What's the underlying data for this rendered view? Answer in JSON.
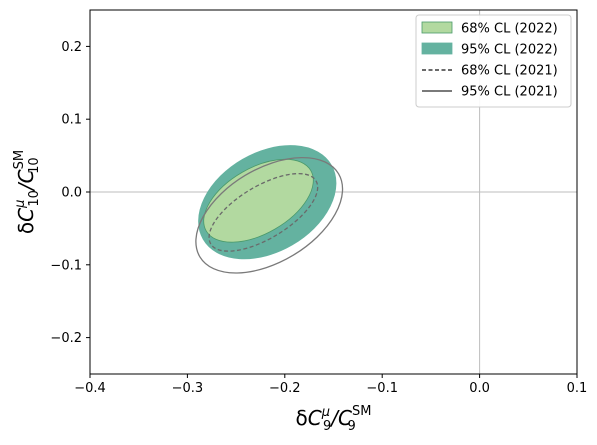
{
  "chart_data": {
    "type": "contour",
    "x_range": [
      -0.4,
      0.1
    ],
    "y_range": [
      -0.25,
      0.25
    ],
    "x_ticks": [
      {
        "value": -0.4,
        "label": "−0.4"
      },
      {
        "value": -0.3,
        "label": "−0.3"
      },
      {
        "value": -0.2,
        "label": "−0.2"
      },
      {
        "value": -0.1,
        "label": "−0.1"
      },
      {
        "value": 0.0,
        "label": "0.0"
      },
      {
        "value": 0.1,
        "label": "0.1"
      }
    ],
    "y_ticks": [
      {
        "value": -0.2,
        "label": "−0.2"
      },
      {
        "value": -0.1,
        "label": "−0.1"
      },
      {
        "value": 0.0,
        "label": "0.0"
      },
      {
        "value": 0.1,
        "label": "0.1"
      },
      {
        "value": 0.2,
        "label": "0.2"
      }
    ],
    "reference_lines": {
      "x": 0.0,
      "y": 0.0,
      "color": "#bdbdbd"
    },
    "xlabel": {
      "delta": "δ",
      "main": "C",
      "sup": "μ",
      "sub": "9",
      "sep": "/C",
      "sup2": "SM",
      "sub2": "9"
    },
    "ylabel": {
      "delta": "δ",
      "main": "C",
      "sup": "μ",
      "sub": "10",
      "sep": "/C",
      "sup2": "SM",
      "sub2": "10"
    },
    "legend_position": "top-right",
    "series": [
      {
        "name": "68% CL (2022)",
        "style": "filled",
        "fill": "#b2d9a0",
        "stroke": "#4a9a6a",
        "center": [
          -0.227,
          -0.012
        ],
        "semi_axes": [
          0.062,
          0.045
        ],
        "rotation_deg": -30
      },
      {
        "name": "95% CL (2022)",
        "style": "filled",
        "fill": "#64b2a0",
        "stroke": "#64b2a0",
        "center": [
          -0.218,
          -0.014
        ],
        "semi_axes": [
          0.076,
          0.068
        ],
        "rotation_deg": -30
      },
      {
        "name": "68% CL (2021)",
        "style": "dashed",
        "stroke": "#6a6a6a",
        "center": [
          -0.222,
          -0.028
        ],
        "semi_axes": [
          0.063,
          0.036
        ],
        "rotation_deg": -31
      },
      {
        "name": "95% CL (2021)",
        "style": "solid",
        "stroke": "#7a7a7a",
        "center": [
          -0.216,
          -0.032
        ],
        "semi_axes": [
          0.083,
          0.064
        ],
        "rotation_deg": -31
      }
    ]
  }
}
